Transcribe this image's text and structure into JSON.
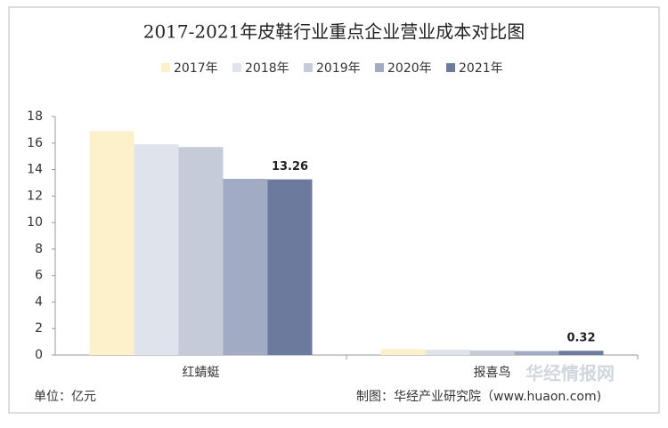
{
  "chart_data": {
    "type": "bar",
    "title": "2017-2021年皮鞋行业重点企业营业成本对比图",
    "categories": [
      "红蜻蜓",
      "报喜鸟"
    ],
    "series": [
      {
        "name": "2017年",
        "color": "#fdf1cc",
        "values": [
          16.9,
          0.45
        ]
      },
      {
        "name": "2018年",
        "color": "#dfe3ec",
        "values": [
          15.9,
          0.4
        ]
      },
      {
        "name": "2019年",
        "color": "#c5cbd9",
        "values": [
          15.7,
          0.35
        ]
      },
      {
        "name": "2020年",
        "color": "#a1abc3",
        "values": [
          13.3,
          0.3
        ]
      },
      {
        "name": "2021年",
        "color": "#6b7a9d",
        "values": [
          13.26,
          0.32
        ],
        "show_labels": true
      }
    ],
    "ylim": [
      0,
      18
    ],
    "yticks": [
      0,
      2,
      4,
      6,
      8,
      10,
      12,
      14,
      16,
      18
    ],
    "legend": "top",
    "unit_note": "单位：亿元",
    "source_note": "制图：华经产业研究院（www.huaon.com)",
    "watermark": "华经情报网"
  }
}
